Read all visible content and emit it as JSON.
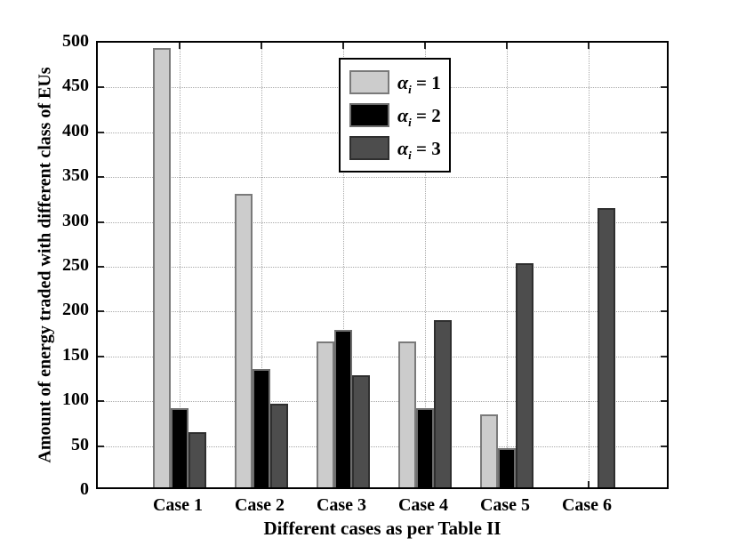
{
  "chart_data": {
    "type": "bar",
    "title": "",
    "xlabel": "Different cases as per Table II",
    "ylabel": "Amount of energy traded with different class of EUs",
    "categories": [
      "Case 1",
      "Case 2",
      "Case 3",
      "Case 4",
      "Case 5",
      "Case 6"
    ],
    "series": [
      {
        "name": "alpha_i = 1",
        "legend": {
          "symbol": "α",
          "sub": "i",
          "rest": " = 1"
        },
        "fill": "#cccccc",
        "edge": "#7a7a7a",
        "values": [
          490,
          327,
          163,
          163,
          81,
          0
        ]
      },
      {
        "name": "alpha_i = 2",
        "legend": {
          "symbol": "α",
          "sub": "i",
          "rest": " = 2"
        },
        "fill": "#000000",
        "edge": "#6e6e6e",
        "values": [
          88,
          132,
          176,
          88,
          44,
          0
        ]
      },
      {
        "name": "alpha_i = 3",
        "legend": {
          "symbol": "α",
          "sub": "i",
          "rest": " = 3"
        },
        "fill": "#4d4d4d",
        "edge": "#2f2f2f",
        "values": [
          62,
          93,
          125,
          187,
          250,
          312
        ]
      }
    ],
    "ylim": [
      0,
      500
    ],
    "ytick_step": 50,
    "ytick_labels": [
      "0",
      "50",
      "100",
      "150",
      "200",
      "250",
      "300",
      "350",
      "400",
      "450",
      "500"
    ],
    "xlim": [
      0,
      7
    ],
    "grid": "dotted",
    "legend_position": "upper-left-of-center",
    "background_color": "#ffffff",
    "axis_color": "#000000",
    "gridline_color": "#a9a9a9"
  }
}
